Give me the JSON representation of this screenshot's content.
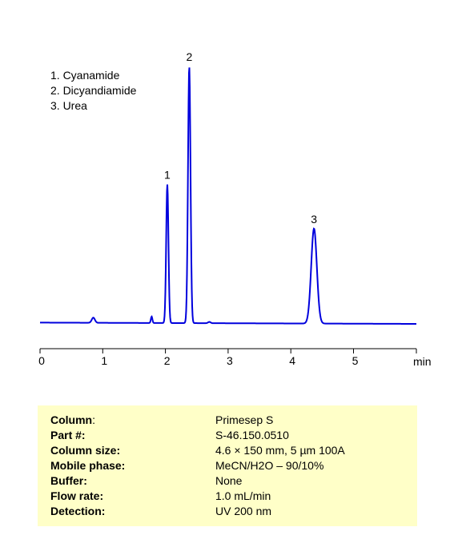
{
  "chart_data": {
    "type": "line",
    "title": "",
    "xlabel": "min",
    "ylabel": "",
    "xlim": [
      0,
      6
    ],
    "ylim": [
      0,
      1.0
    ],
    "x_ticks": [
      0,
      1,
      2,
      3,
      4,
      5
    ],
    "x_tick_labels": [
      "0",
      "1",
      "2",
      "3",
      "4",
      "5"
    ],
    "grid": false,
    "color": "#0000dd",
    "baseline_offset": 0.005,
    "peaks": [
      {
        "label": "",
        "time": 0.85,
        "height": 0.02,
        "width": 0.025
      },
      {
        "label": "",
        "time": 1.78,
        "height": 0.025,
        "width": 0.012
      },
      {
        "label": "1",
        "time": 2.03,
        "height": 0.54,
        "width": 0.018
      },
      {
        "label": "2",
        "time": 2.38,
        "height": 1.0,
        "width": 0.02
      },
      {
        "label": "",
        "time": 2.7,
        "height": 0.005,
        "width": 0.02
      },
      {
        "label": "3",
        "time": 4.37,
        "height": 0.37,
        "width": 0.045
      }
    ]
  },
  "legend": {
    "items": [
      "1. Cyanamide",
      "2. Dicyandiamide",
      "3. Urea"
    ]
  },
  "conditions": {
    "rows": [
      {
        "label": "Column",
        "sep": ":",
        "value": "Primesep S"
      },
      {
        "label": "Part #:",
        "sep": "",
        "value": "S-46.150.0510"
      },
      {
        "label": "Column size:",
        "sep": "",
        "value": "4.6 × 150 mm, 5 µm  100A"
      },
      {
        "label": "Mobile phase:",
        "sep": "",
        "value": "MeCN/H2O – 90/10%"
      },
      {
        "label": "Buffer:",
        "sep": "",
        "value": "None"
      },
      {
        "label": "Flow rate:",
        "sep": "",
        "value": "1.0 mL/min"
      },
      {
        "label": "Detection:",
        "sep": "",
        "value": "UV 200 nm"
      }
    ]
  }
}
